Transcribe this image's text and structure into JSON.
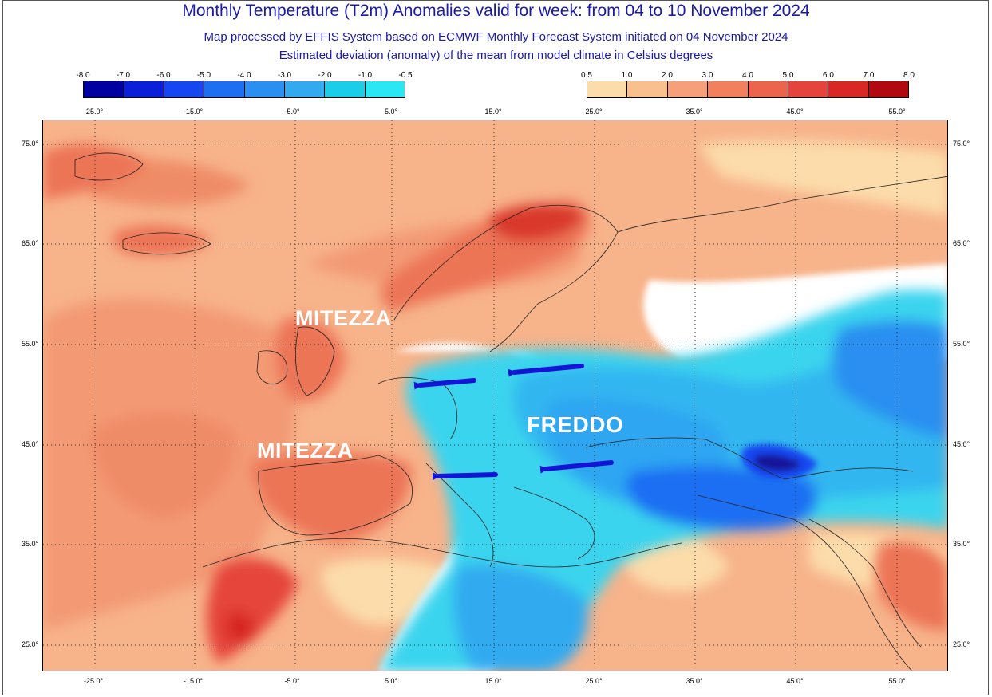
{
  "title": "Monthly Temperature (T2m) Anomalies valid for week: from 04 to 10 November 2024",
  "subtitle_1": "Map processed by EFFIS System based on ECMWF Monthly Forecast System initiated on 04 November 2024",
  "subtitle_2": "Estimated deviation (anomaly) of the mean from model climate in Celsius degrees",
  "cold_colorbar": {
    "ticks": [
      "-8.0",
      "-7.0",
      "-6.0",
      "-5.0",
      "-4.0",
      "-3.0",
      "-2.0",
      "-1.0",
      "-0.5"
    ],
    "colors": [
      "#0000a0",
      "#0a1fd8",
      "#1546f0",
      "#1e6ef2",
      "#2a8ff0",
      "#33aaf0",
      "#1ccde8",
      "#2ae8f2"
    ]
  },
  "warm_colorbar": {
    "ticks": [
      "0.5",
      "1.0",
      "2.0",
      "3.0",
      "4.0",
      "5.0",
      "6.0",
      "7.0",
      "8.0"
    ],
    "colors": [
      "#fcdcaa",
      "#f9c08e",
      "#f5a07a",
      "#f1805f",
      "#ec644b",
      "#e5443a",
      "#d72824",
      "#b00a0e"
    ]
  },
  "scale_labels": [
    "-25.0°",
    "-15.0°",
    "-5.0°",
    "5.0°",
    "15.0°",
    "25.0°",
    "35.0°",
    "45.0°",
    "55.0°"
  ],
  "lon_labels": [
    "-25.0°",
    "-15.0°",
    "-5.0°",
    "5.0°",
    "15.0°",
    "25.0°",
    "35.0°",
    "45.0°",
    "55.0°"
  ],
  "lat_labels": [
    "75.0°",
    "65.0°",
    "55.0°",
    "45.0°",
    "35.0°",
    "25.0°"
  ],
  "annotations": {
    "mild_north": "MITEZZA",
    "mild_south": "MITEZZA",
    "cold": "FREDDO"
  },
  "colors": {
    "title": "#1a1aa8",
    "arrow": "#1414d6",
    "ocean_warm": "#f7b38a",
    "land_mild": "#f19a75",
    "land_warm": "#ec7456",
    "hot": "#d9392a",
    "cold_light": "#3bd4ee",
    "cold_mid": "#2da6f2",
    "cold_deep": "#1560e6",
    "cold_extreme": "#12139a"
  }
}
